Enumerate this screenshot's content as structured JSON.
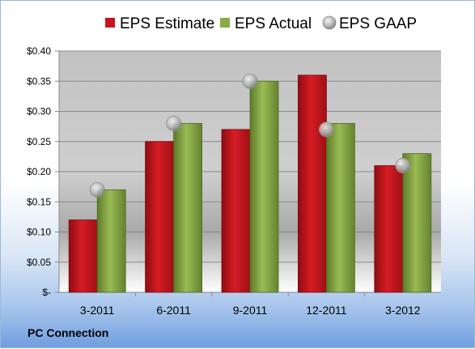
{
  "company": "PC Connection",
  "colors": {
    "estimate": "#c8141c",
    "actual": "#8aaa44",
    "gaap": "#b8b8b8"
  },
  "chart_data": {
    "type": "bar",
    "categories": [
      "3-2011",
      "6-2011",
      "9-2011",
      "12-2011",
      "3-2012"
    ],
    "series": [
      {
        "name": "EPS Estimate",
        "values": [
          0.12,
          0.25,
          0.27,
          0.36,
          0.21
        ]
      },
      {
        "name": "EPS Actual",
        "values": [
          0.17,
          0.28,
          0.35,
          0.28,
          0.23
        ]
      },
      {
        "name": "EPS GAAP",
        "marker": "circle",
        "values": [
          0.17,
          0.28,
          0.35,
          0.27,
          0.21
        ]
      }
    ],
    "yticks": [
      "$-",
      "$0.05",
      "$0.10",
      "$0.15",
      "$0.20",
      "$0.25",
      "$0.30",
      "$0.35",
      "$0.40"
    ],
    "ylim": [
      0,
      0.4
    ],
    "grid": true,
    "legend": "top"
  }
}
